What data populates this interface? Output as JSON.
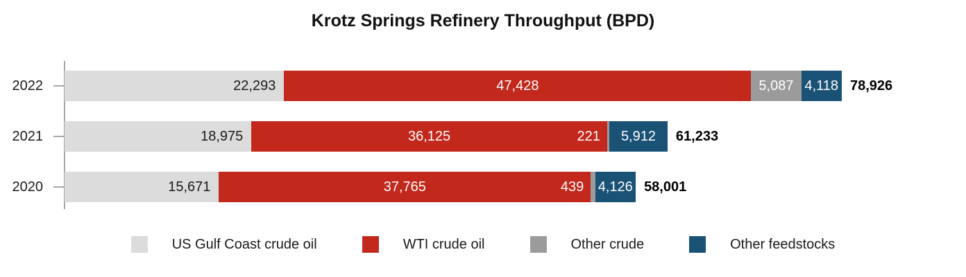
{
  "chart_data": {
    "type": "bar",
    "orientation": "horizontal-stacked",
    "title": "Krotz Springs Refinery Throughput (BPD)",
    "categories": [
      "2022",
      "2021",
      "2020"
    ],
    "series": [
      {
        "name": "US Gulf Coast crude oil",
        "color": "#dcdcdc",
        "values": [
          22293,
          18975,
          15671
        ]
      },
      {
        "name": "WTI crude oil",
        "color": "#c2281c",
        "values": [
          47428,
          36125,
          37765
        ]
      },
      {
        "name": "Other crude",
        "color": "#9b9b9b",
        "values": [
          5087,
          221,
          439
        ]
      },
      {
        "name": "Other feedstocks",
        "color": "#1a5276",
        "values": [
          4118,
          5912,
          4126
        ]
      }
    ],
    "totals": [
      78926,
      61233,
      58001
    ],
    "value_label_format": "#,###",
    "xlim": [
      0,
      78926
    ],
    "grid": false,
    "legend_position": "bottom",
    "legend_entries": [
      "US Gulf Coast crude oil",
      "WTI crude oil",
      "Other crude",
      "Other feedstocks"
    ]
  }
}
